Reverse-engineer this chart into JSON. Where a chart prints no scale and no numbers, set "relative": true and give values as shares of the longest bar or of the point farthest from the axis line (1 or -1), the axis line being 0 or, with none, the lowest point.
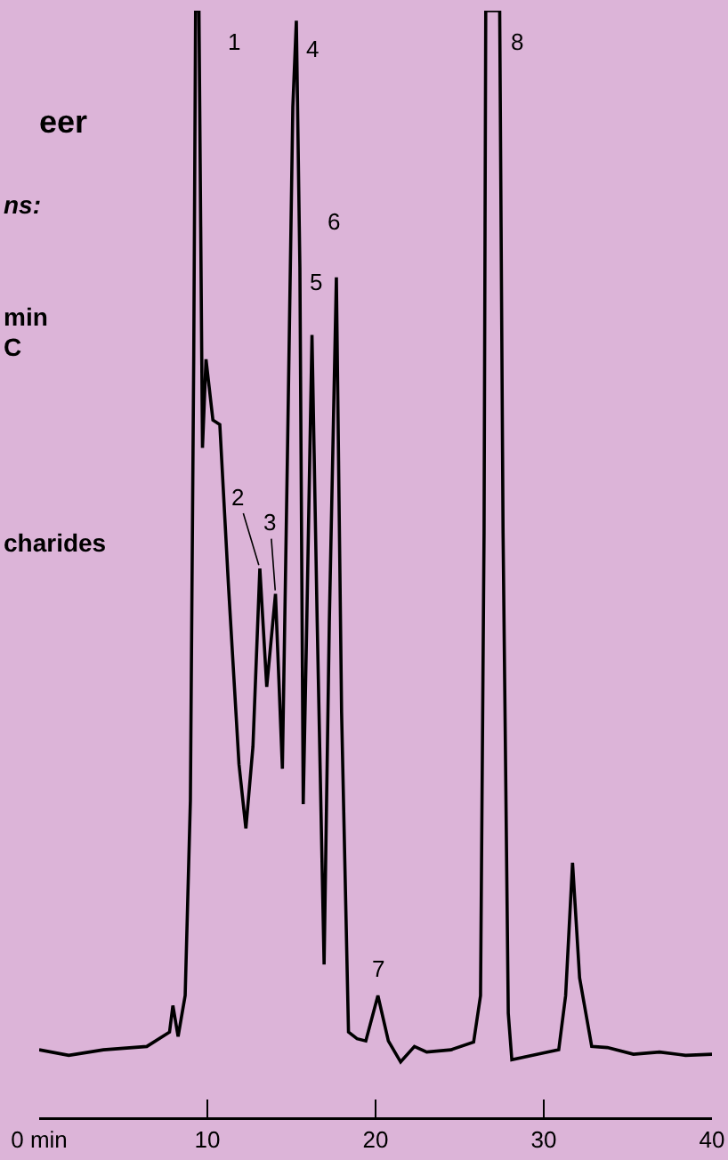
{
  "chart_data": {
    "type": "line",
    "title": "eer",
    "relative": true,
    "marker": "none",
    "line_style": "solid",
    "grid": false,
    "xticks": [
      {
        "value": 0,
        "label": "0 min"
      },
      10,
      20,
      30,
      40
    ],
    "xlim": [
      0,
      40
    ],
    "series": [
      {
        "color": "#000000",
        "x": [
          0,
          1.76,
          3.82,
          6.4,
          7.75,
          7.95,
          8.26,
          8.68,
          8.99,
          9.19,
          9.3,
          9.5,
          9.71,
          9.92,
          10.33,
          10.74,
          11.26,
          11.88,
          12.29,
          12.71,
          13.12,
          13.53,
          14.05,
          14.46,
          14.77,
          15.08,
          15.29,
          15.5,
          15.7,
          15.91,
          16.22,
          16.53,
          16.94,
          17.25,
          17.67,
          17.98,
          18.39,
          18.9,
          19.42,
          20.14,
          20.76,
          21.49,
          22.31,
          23.04,
          24.48,
          25.83,
          26.24,
          26.45,
          26.55,
          27.38,
          27.58,
          27.89,
          28.1,
          29.65,
          30.89,
          31.3,
          31.71,
          32.13,
          32.85,
          33.78,
          35.33,
          36.88,
          38.43,
          40
        ],
        "values": [
          0.061,
          0.056,
          0.061,
          0.064,
          0.077,
          0.101,
          0.073,
          0.11,
          0.286,
          0.688,
          1,
          1,
          0.605,
          0.685,
          0.63,
          0.626,
          0.479,
          0.319,
          0.261,
          0.335,
          0.496,
          0.389,
          0.473,
          0.315,
          0.608,
          0.913,
          0.991,
          0.768,
          0.283,
          0.447,
          0.707,
          0.447,
          0.138,
          0.447,
          0.759,
          0.366,
          0.077,
          0.071,
          0.069,
          0.11,
          0.069,
          0.05,
          0.064,
          0.059,
          0.061,
          0.068,
          0.11,
          0.528,
          1,
          1,
          0.528,
          0.094,
          0.052,
          0.057,
          0.061,
          0.11,
          0.23,
          0.126,
          0.064,
          0.063,
          0.057,
          0.059,
          0.056,
          0.057
        ]
      }
    ],
    "annotations": [
      "ns:",
      "min",
      "C",
      "charides",
      {
        "text": "1",
        "x": 9.5,
        "y": 1
      },
      {
        "text": "2",
        "x": 13.12,
        "y": 0.496
      },
      {
        "text": "3",
        "x": 14.05,
        "y": 0.473
      },
      {
        "text": "4",
        "x": 15.29,
        "y": 0.991
      },
      {
        "text": "5",
        "x": 16.22,
        "y": 0.707
      },
      {
        "text": "6",
        "x": 17.67,
        "y": 0.759
      },
      {
        "text": "7",
        "x": 20.14,
        "y": 0.11
      },
      {
        "text": "8",
        "x": 27.38,
        "y": 1
      }
    ]
  }
}
